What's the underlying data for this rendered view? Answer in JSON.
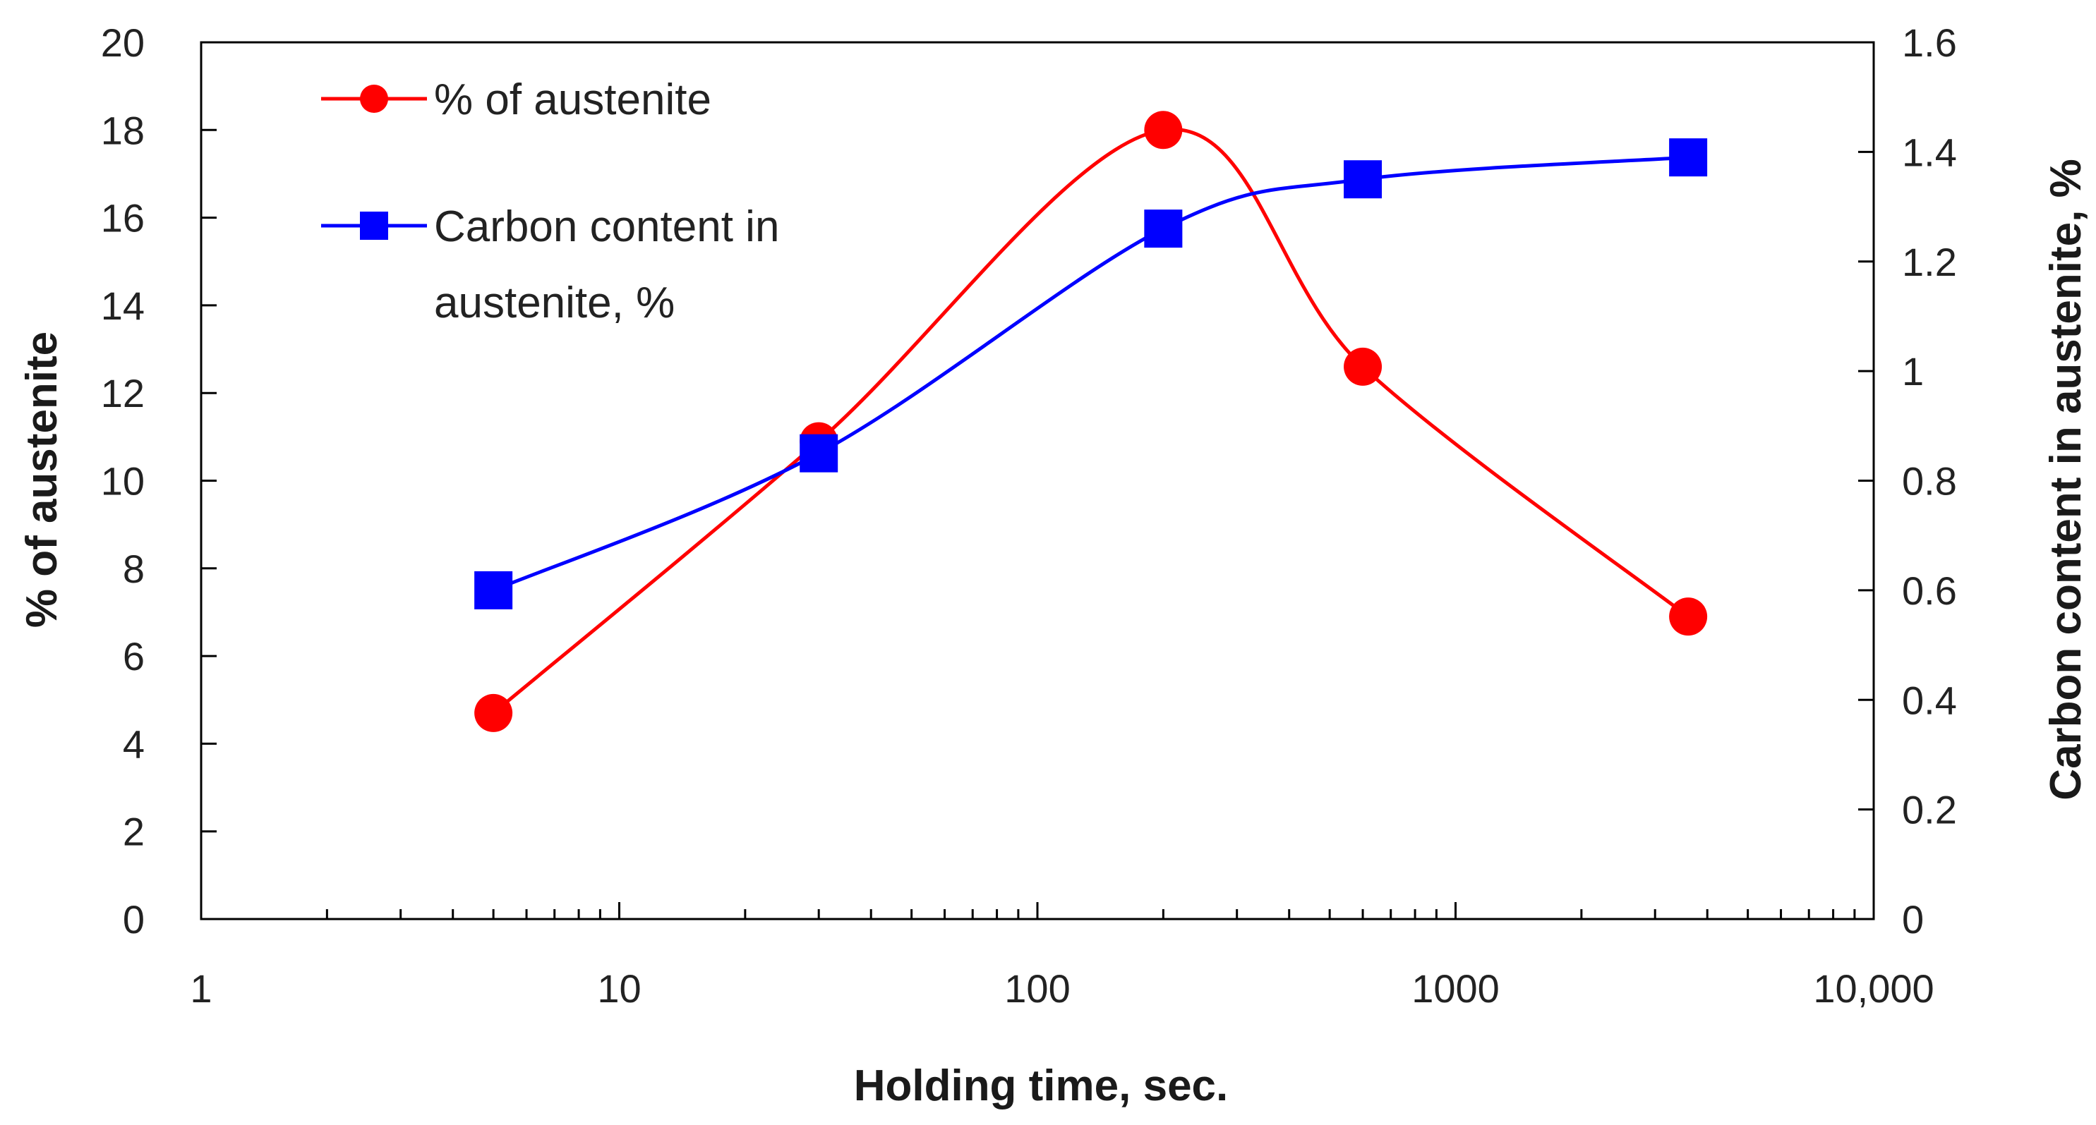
{
  "chart_data": {
    "type": "line",
    "xlabel": "Holding time, sec.",
    "ylabel_left": "% of austenite",
    "ylabel_right": "Carbon content in austenite, %",
    "x_scale": "log",
    "xlim": [
      1,
      10000
    ],
    "ylim_left": [
      0,
      20
    ],
    "ylim_right": [
      0,
      1.6
    ],
    "x_ticks": [
      {
        "value": 1,
        "label": "1"
      },
      {
        "value": 10,
        "label": "10"
      },
      {
        "value": 100,
        "label": "100"
      },
      {
        "value": 1000,
        "label": "1000"
      },
      {
        "value": 10000,
        "label": "10,000"
      }
    ],
    "y_ticks_left": [
      "0",
      "2",
      "4",
      "6",
      "8",
      "10",
      "12",
      "14",
      "16",
      "18",
      "20"
    ],
    "y_ticks_right": [
      "0",
      "0.2",
      "0.4",
      "0.6",
      "0.8",
      "1",
      "1.2",
      "1.4",
      "1.6"
    ],
    "grid": false,
    "legend_position": "top-left",
    "series": [
      {
        "name": "% of austenite",
        "axis": "left",
        "color": "#ff0000",
        "marker": "circle",
        "smooth": true,
        "x": [
          5,
          30,
          200,
          600,
          3600
        ],
        "y": [
          4.7,
          10.9,
          18.0,
          12.6,
          6.9
        ]
      },
      {
        "name": "Carbon content in austenite, %",
        "legend_lines": [
          "Carbon content in",
          "austenite, %"
        ],
        "axis": "right",
        "color": "#0000ff",
        "marker": "square",
        "smooth": true,
        "x": [
          5,
          30,
          200,
          600,
          3600
        ],
        "y": [
          0.6,
          0.85,
          1.26,
          1.35,
          1.39
        ]
      }
    ]
  }
}
